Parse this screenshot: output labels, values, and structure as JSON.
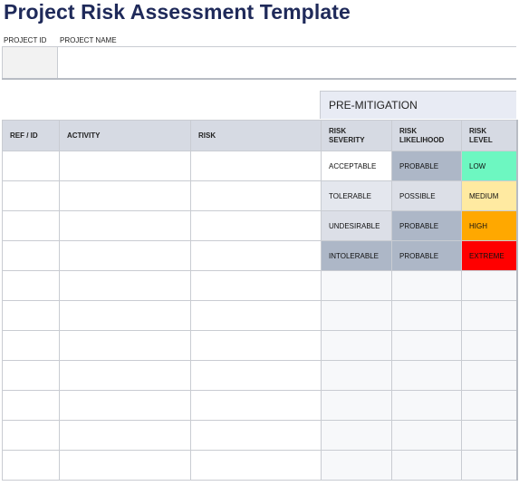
{
  "title": "Project Risk Assessment Template",
  "project_labels": {
    "id": "PROJECT ID",
    "name": "PROJECT NAME"
  },
  "section_header": "PRE-MITIGATION",
  "columns": [
    "REF / ID",
    "ACTIVITY",
    "RISK",
    "RISK\nSEVERITY",
    "RISK LIKELIHOOD",
    "RISK\nLEVEL"
  ],
  "rows": [
    {
      "severity": "ACCEPTABLE",
      "likelihood": "PROBABLE",
      "level": "LOW",
      "severity_bg": "#ffffff",
      "likelihood_bg": "#adb7c7",
      "level_bg": "#6df7c1",
      "level_color": "#111111"
    },
    {
      "severity": "TOLERABLE",
      "likelihood": "POSSIBLE",
      "level": "MEDIUM",
      "severity_bg": "#e4e7ee",
      "likelihood_bg": "#dcdfe7",
      "level_bg": "#ffeaa1",
      "level_color": "#111111"
    },
    {
      "severity": "UNDESIRABLE",
      "likelihood": "PROBABLE",
      "level": "HIGH",
      "severity_bg": "#dcdfe7",
      "likelihood_bg": "#adb7c7",
      "level_bg": "#ffa800",
      "level_color": "#111111"
    },
    {
      "severity": "INTOLERABLE",
      "likelihood": "PROBABLE",
      "level": "EXTREME",
      "severity_bg": "#adb7c7",
      "likelihood_bg": "#adb7c7",
      "level_bg": "#ff0000",
      "level_color": "#111111"
    }
  ],
  "blank_rows": 7
}
